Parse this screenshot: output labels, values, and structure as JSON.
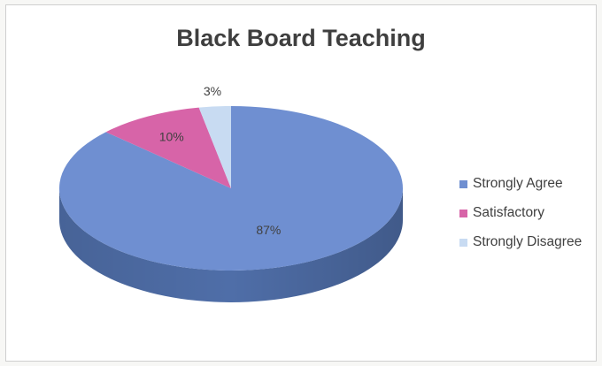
{
  "chart_data": {
    "type": "pie",
    "title": "Black Board Teaching",
    "categories": [
      "Strongly Agree",
      "Satisfactory",
      "Strongly Disagree"
    ],
    "values": [
      87,
      10,
      3
    ],
    "data_labels": [
      "87%",
      "10%",
      "3%"
    ],
    "colors": [
      "#6f8fd1",
      "#d764a8",
      "#c8dbf2"
    ],
    "side_colors": [
      "#4f6ea8",
      "#a84c86",
      "#9fb5d2"
    ],
    "style": "3d",
    "legend_position": "right"
  }
}
